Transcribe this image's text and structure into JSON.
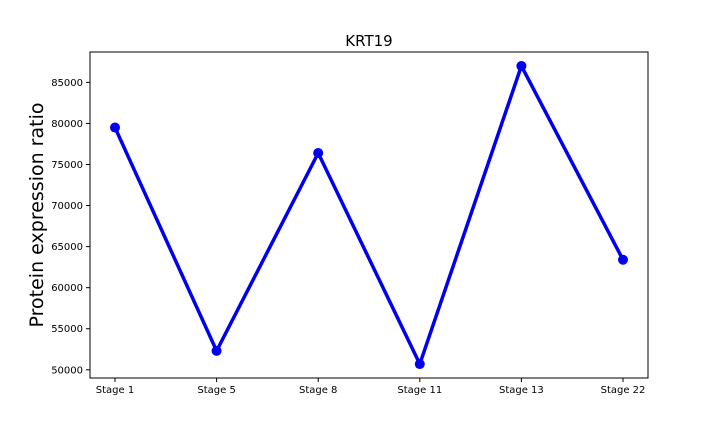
{
  "chart_data": {
    "type": "line",
    "title": "KRT19",
    "xlabel": "",
    "ylabel": "Protein expression ratio",
    "categories": [
      "Stage 1",
      "Stage 5",
      "Stage 8",
      "Stage 11",
      "Stage 13",
      "Stage 22"
    ],
    "series": [
      {
        "values": [
          79500,
          52300,
          76400,
          50700,
          87000,
          63400
        ],
        "color": "#0000ee"
      }
    ],
    "ylim": [
      49000,
      88700
    ],
    "yticks": [
      50000,
      55000,
      60000,
      65000,
      70000,
      75000,
      80000,
      85000
    ],
    "grid": false,
    "legend": "none"
  }
}
